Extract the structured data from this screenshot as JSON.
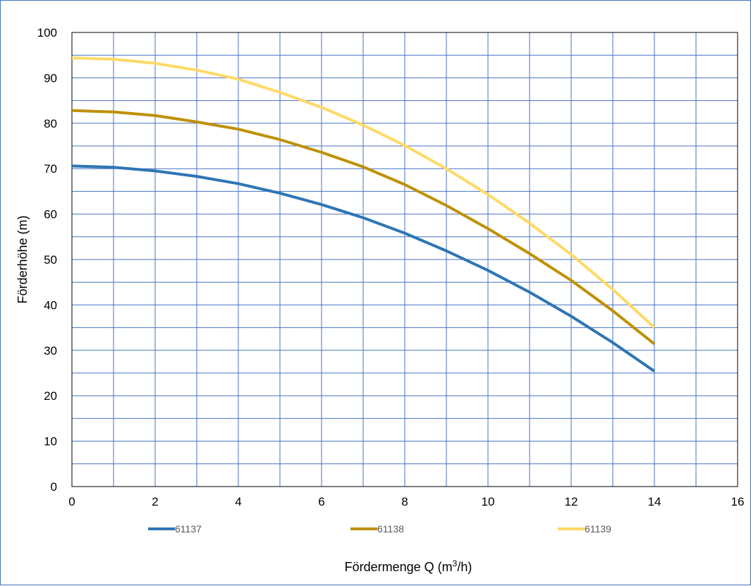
{
  "chart_data": {
    "type": "line",
    "title": "",
    "xlabel": "Fördermenge Q (m",
    "xlabel_sup": "3",
    "xlabel_suffix": "/h)",
    "ylabel": "Förderhöhe (m)",
    "xlim": [
      0,
      16
    ],
    "ylim": [
      0,
      100
    ],
    "x_ticks": [
      0,
      2,
      4,
      6,
      8,
      10,
      12,
      14,
      16
    ],
    "y_ticks": [
      0,
      10,
      20,
      30,
      40,
      50,
      60,
      70,
      80,
      90,
      100
    ],
    "x_minor_step": 1,
    "y_minor_step": 5,
    "grid": true,
    "grid_color": "#4472c4",
    "legend_position": "bottom",
    "x": [
      0,
      1,
      2,
      3,
      4,
      5,
      6,
      7,
      8,
      9,
      10,
      11,
      12,
      13,
      14
    ],
    "series": [
      {
        "name": "61137",
        "color": "#2e75b6",
        "values": [
          70.6,
          70.3,
          69.5,
          68.3,
          66.7,
          64.6,
          62.1,
          59.2,
          55.8,
          51.9,
          47.6,
          42.8,
          37.5,
          31.7,
          25.4
        ]
      },
      {
        "name": "61138",
        "color": "#bf9000",
        "values": [
          82.8,
          82.5,
          81.7,
          80.3,
          78.7,
          76.4,
          73.6,
          70.4,
          66.5,
          61.9,
          56.8,
          51.3,
          45.4,
          38.7,
          31.4
        ]
      },
      {
        "name": "61139",
        "color": "#ffd966",
        "values": [
          94.4,
          94.1,
          93.2,
          91.7,
          89.7,
          86.8,
          83.5,
          79.6,
          75.1,
          70.0,
          64.3,
          58.0,
          51.1,
          43.4,
          35.0
        ]
      }
    ]
  }
}
